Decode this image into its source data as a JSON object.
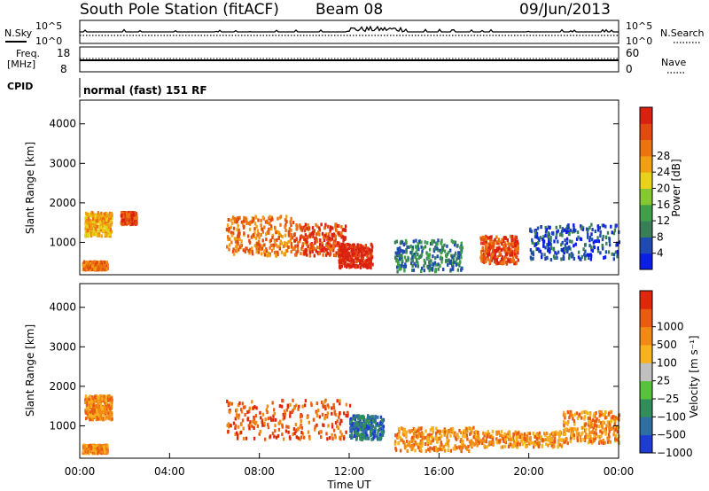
{
  "header": {
    "station": "South Pole Station (fitACF)",
    "beam": "Beam 08",
    "date": "09/Jun/2013"
  },
  "top_panels": {
    "nsky_label": "N.Sky",
    "nsearch_label": "N.Search",
    "nsky_ticks": [
      "10^5",
      "10^0"
    ],
    "nsearch_ticks": [
      "10^5",
      "10^0"
    ],
    "freq_label_1": "Freq.",
    "freq_label_2": "[MHz]",
    "freq_ticks": [
      "18",
      "8"
    ],
    "nave_label": "Nave",
    "nave_ticks": [
      "60",
      "0"
    ],
    "cpid_label": "CPID",
    "cpid_value": "normal (fast) 151 RF"
  },
  "chart_data": [
    {
      "type": "heatmap",
      "name": "power",
      "ylabel": "Slant Range [km]",
      "xlabel": "Time UT",
      "xlim": [
        0,
        24
      ],
      "ylim": [
        180,
        4600
      ],
      "yticks": [
        "1000",
        "2000",
        "3000",
        "4000"
      ],
      "colorbar": {
        "label": "Power [dB]",
        "ticks": [
          "4",
          "8",
          "12",
          "16",
          "20",
          "24",
          "28"
        ],
        "colors": [
          "#0a1ee6",
          "#1f4bb0",
          "#3a7e58",
          "#3fa04a",
          "#85c832",
          "#e8d21a",
          "#f0a010",
          "#ec7410",
          "#e24a10",
          "#da2010"
        ]
      },
      "echo_regions": [
        {
          "t": [
            0.2,
            1.4
          ],
          "r": [
            1200,
            1800
          ],
          "level": 6
        },
        {
          "t": [
            0.1,
            1.2
          ],
          "r": [
            350,
            550
          ],
          "level": 7
        },
        {
          "t": [
            1.8,
            2.5
          ],
          "r": [
            1500,
            1800
          ],
          "level": 8
        },
        {
          "t": [
            6.5,
            9.5
          ],
          "r": [
            700,
            1700
          ],
          "level": 7
        },
        {
          "t": [
            9.5,
            11.8
          ],
          "r": [
            700,
            1500
          ],
          "level": 8
        },
        {
          "t": [
            11.5,
            13.0
          ],
          "r": [
            400,
            1000
          ],
          "level": 9
        },
        {
          "t": [
            14.0,
            17.0
          ],
          "r": [
            300,
            1100
          ],
          "level": 2
        },
        {
          "t": [
            17.8,
            19.5
          ],
          "r": [
            500,
            1200
          ],
          "level": 8
        },
        {
          "t": [
            20.0,
            24.0
          ],
          "r": [
            600,
            1500
          ],
          "level": 1
        }
      ]
    },
    {
      "type": "heatmap",
      "name": "velocity",
      "ylabel": "Slant Range [km]",
      "xlabel": "Time UT",
      "xlim": [
        0,
        24
      ],
      "ylim": [
        180,
        4600
      ],
      "yticks": [
        "1000",
        "2000",
        "3000",
        "4000"
      ],
      "xticks": [
        "00:00",
        "04:00",
        "08:00",
        "12:00",
        "16:00",
        "20:00",
        "00:00"
      ],
      "colorbar": {
        "label": "Velocity [m s⁻¹]",
        "ticks": [
          "1000",
          "500",
          "100",
          "25",
          "−25",
          "−100",
          "−500",
          "−1000"
        ],
        "colors": [
          "#1e3cd2",
          "#2e6ea0",
          "#2f8e5a",
          "#55c43a",
          "#c0c0c0",
          "#f7b21c",
          "#f08a14",
          "#ea5a10",
          "#e02808"
        ]
      },
      "echo_regions": [
        {
          "t": [
            0.2,
            1.4
          ],
          "r": [
            1200,
            1800
          ],
          "level": 6
        },
        {
          "t": [
            0.1,
            1.2
          ],
          "r": [
            350,
            550
          ],
          "level": 6
        },
        {
          "t": [
            6.5,
            12.0
          ],
          "r": [
            700,
            1700
          ],
          "level": 7
        },
        {
          "t": [
            12.0,
            13.5
          ],
          "r": [
            700,
            1300
          ],
          "level": 1
        },
        {
          "t": [
            14.0,
            17.5
          ],
          "r": [
            400,
            1000
          ],
          "level": 6
        },
        {
          "t": [
            17.5,
            21.5
          ],
          "r": [
            500,
            900
          ],
          "level": 6
        },
        {
          "t": [
            21.5,
            24.0
          ],
          "r": [
            600,
            1400
          ],
          "level": 6
        }
      ]
    }
  ]
}
